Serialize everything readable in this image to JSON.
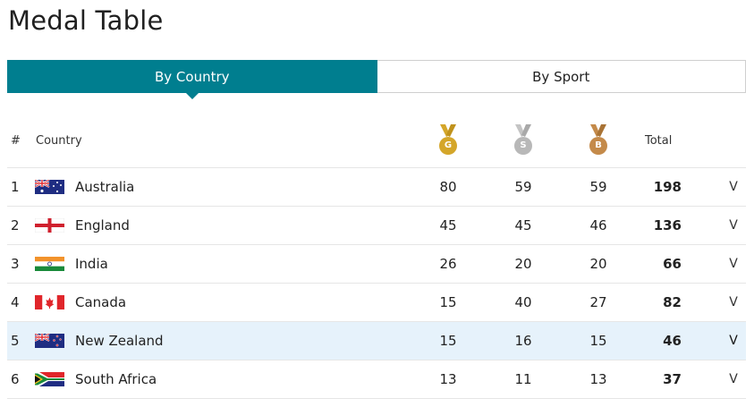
{
  "page": {
    "title": "Medal Table"
  },
  "tabs": [
    {
      "label": "By Country",
      "active": true
    },
    {
      "label": "By Sport",
      "active": false
    }
  ],
  "header": {
    "rank": "#",
    "country": "Country",
    "gold_letter": "G",
    "silver_letter": "S",
    "bronze_letter": "B",
    "total": "Total"
  },
  "colors": {
    "accent": "#007e8f",
    "gold": "#d4a62a",
    "silver": "#b8b8b8",
    "bronze": "#c48a4a",
    "highlight_row": "#e6f2fb"
  },
  "rows": [
    {
      "rank": "1",
      "country": "Australia",
      "flag": "australia-flag",
      "gold": "80",
      "silver": "59",
      "bronze": "59",
      "total": "198"
    },
    {
      "rank": "2",
      "country": "England",
      "flag": "england-flag",
      "gold": "45",
      "silver": "45",
      "bronze": "46",
      "total": "136"
    },
    {
      "rank": "3",
      "country": "India",
      "flag": "india-flag",
      "gold": "26",
      "silver": "20",
      "bronze": "20",
      "total": "66"
    },
    {
      "rank": "4",
      "country": "Canada",
      "flag": "canada-flag",
      "gold": "15",
      "silver": "40",
      "bronze": "27",
      "total": "82"
    },
    {
      "rank": "5",
      "country": "New Zealand",
      "flag": "new-zealand-flag",
      "gold": "15",
      "silver": "16",
      "bronze": "15",
      "total": "46",
      "highlighted": true
    },
    {
      "rank": "6",
      "country": "South Africa",
      "flag": "south-africa-flag",
      "gold": "13",
      "silver": "11",
      "bronze": "13",
      "total": "37"
    }
  ],
  "expand_glyph": "V"
}
